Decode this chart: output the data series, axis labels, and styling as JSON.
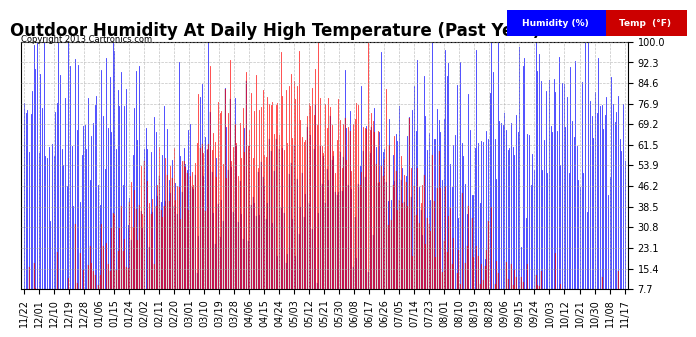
{
  "title": "Outdoor Humidity At Daily High Temperature (Past Year) 20131122",
  "copyright": "Copyright 2013 Cartronics.com",
  "legend_labels": [
    "Humidity (%)",
    "Temp  (°F)"
  ],
  "legend_colors": [
    "#0000ff",
    "#ff0000"
  ],
  "legend_bg": "#000080",
  "ylim": [
    7.7,
    100.0
  ],
  "yticks": [
    7.7,
    15.4,
    23.1,
    30.8,
    38.5,
    46.2,
    53.9,
    61.5,
    69.2,
    76.9,
    84.6,
    92.3,
    100.0
  ],
  "xtick_labels": [
    "11/22",
    "12/01",
    "12/10",
    "12/19",
    "12/28",
    "01/06",
    "01/15",
    "01/24",
    "02/02",
    "02/11",
    "02/20",
    "03/01",
    "03/10",
    "03/19",
    "03/28",
    "04/06",
    "04/15",
    "04/24",
    "05/03",
    "05/12",
    "05/21",
    "05/30",
    "06/08",
    "06/17",
    "06/26",
    "07/05",
    "07/14",
    "07/23",
    "08/01",
    "08/10",
    "08/19",
    "08/28",
    "09/06",
    "09/15",
    "09/24",
    "10/03",
    "10/12",
    "10/21",
    "10/30",
    "11/08",
    "11/17"
  ],
  "bg_color": "#ffffff",
  "plot_bg_color": "#ffffff",
  "grid_color": "#aaaaaa",
  "title_fontsize": 12,
  "tick_fontsize": 7,
  "humidity_color": "#0000ff",
  "temp_color": "#ff0000",
  "black_color": "#000000"
}
